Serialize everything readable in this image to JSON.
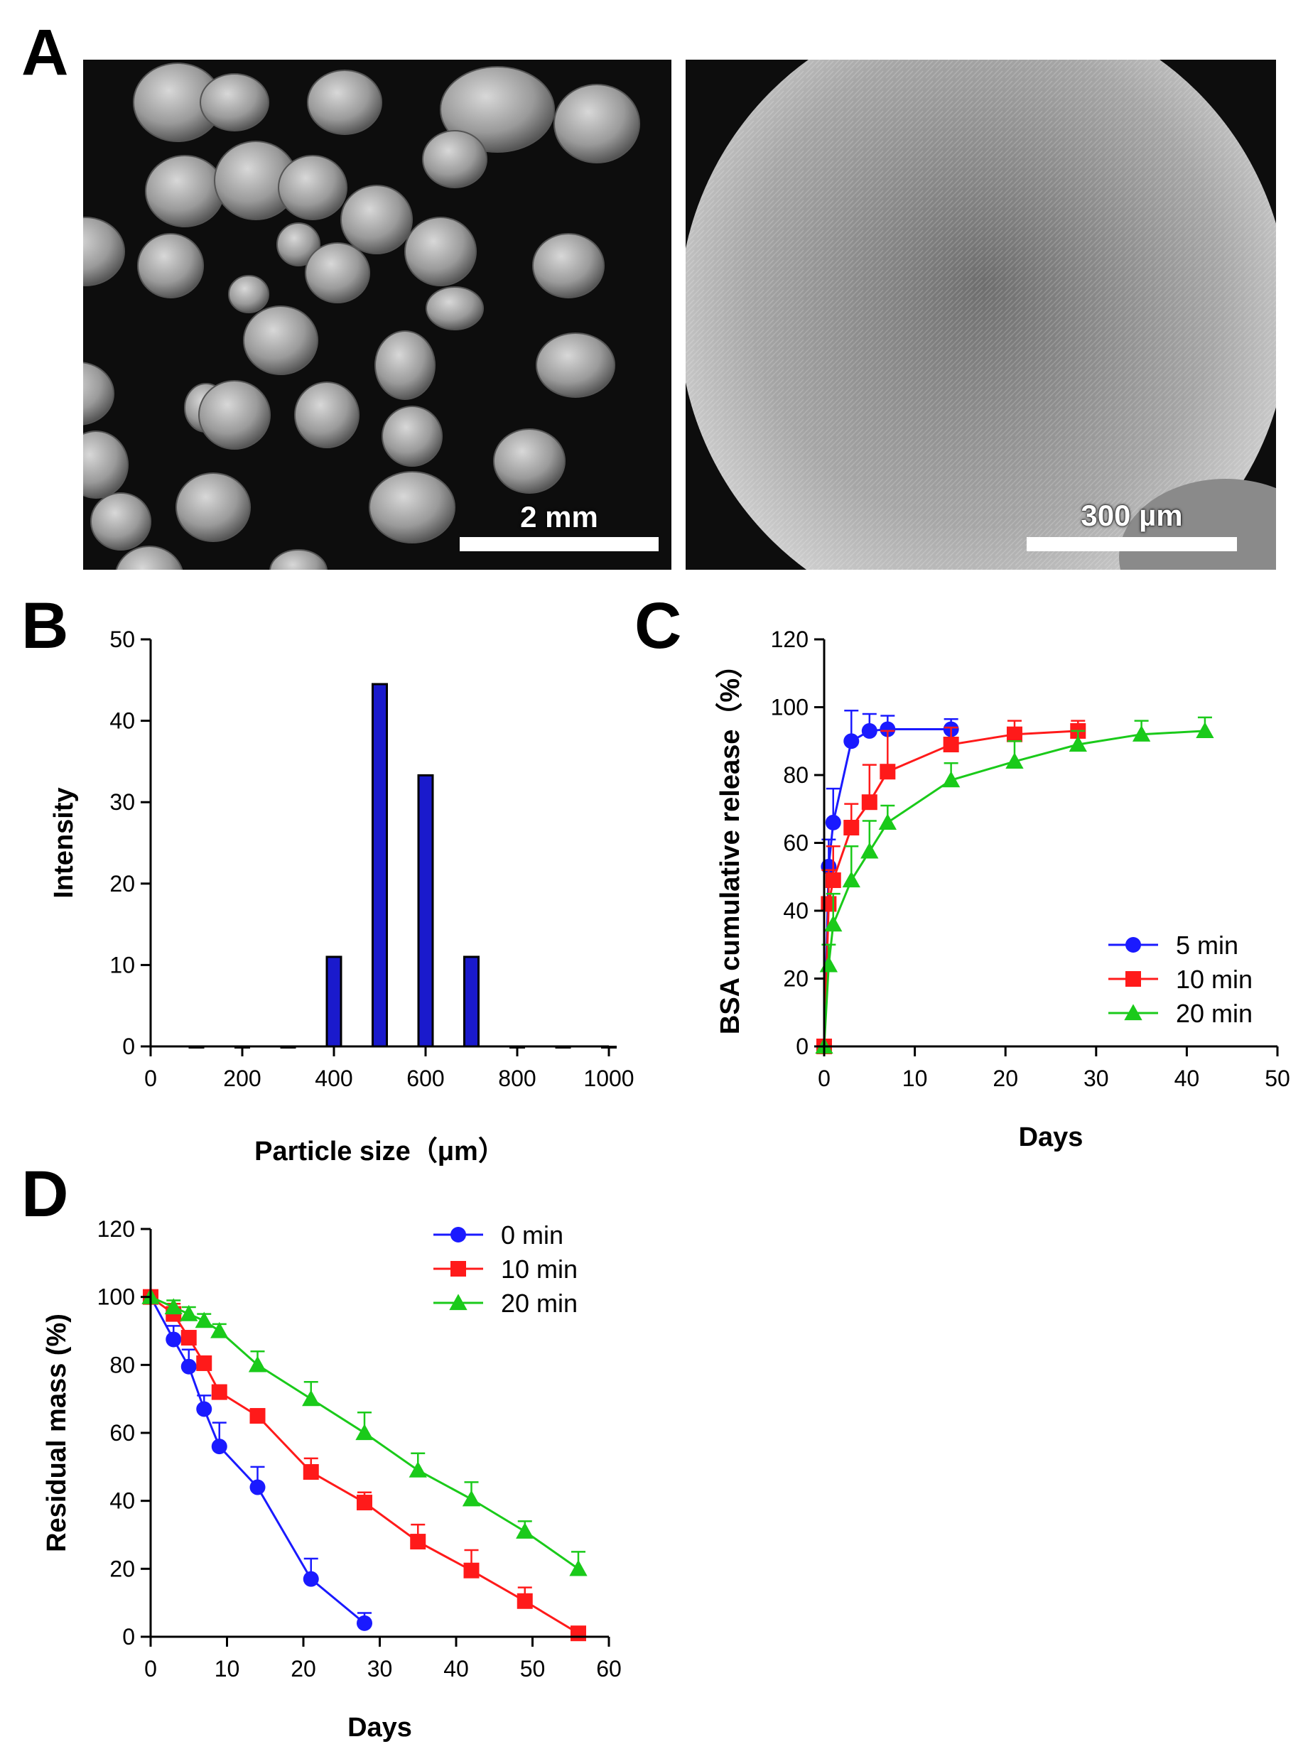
{
  "panels": {
    "A": {
      "letter": "A",
      "left_scale_label": "2 mm",
      "right_scale_label": "300 µm"
    },
    "B": {
      "letter": "B"
    },
    "C": {
      "letter": "C"
    },
    "D": {
      "letter": "D"
    }
  },
  "colors": {
    "blue": "#1a1aff",
    "red": "#ff1a1a",
    "green": "#1aca1a",
    "bar_fill": "#1a1acc",
    "axis": "#000000"
  },
  "chart_data": [
    {
      "id": "B",
      "type": "bar",
      "xlabel": "Particle size（μm）",
      "ylabel": "Intensity",
      "xlim": [
        0,
        1000
      ],
      "ylim": [
        0,
        50
      ],
      "xticks": [
        0,
        200,
        400,
        600,
        800,
        1000
      ],
      "yticks": [
        0,
        10,
        20,
        30,
        40,
        50
      ],
      "categories": [
        100,
        200,
        300,
        400,
        500,
        600,
        700,
        800,
        900,
        1000
      ],
      "values": [
        0,
        0,
        0,
        11,
        44.5,
        33.3,
        11,
        0,
        0,
        0
      ]
    },
    {
      "id": "C",
      "type": "line",
      "xlabel": "Days",
      "ylabel": "BSA cumulative release（%）",
      "xlim": [
        0,
        50
      ],
      "ylim": [
        0,
        120
      ],
      "xticks": [
        0,
        10,
        20,
        30,
        40,
        50
      ],
      "yticks": [
        0,
        20,
        40,
        60,
        80,
        100,
        120
      ],
      "legend_position": "bottom-right",
      "series": [
        {
          "name": "5 min",
          "color": "#1a1aff",
          "marker": "circle",
          "x": [
            0,
            0.5,
            1,
            3,
            5,
            7,
            14
          ],
          "y": [
            0,
            53,
            66,
            90,
            93,
            93.5,
            93.5
          ],
          "err": [
            0,
            8,
            10,
            9,
            5,
            4,
            3
          ]
        },
        {
          "name": "10 min",
          "color": "#ff1a1a",
          "marker": "square",
          "x": [
            0,
            0.5,
            1,
            3,
            5,
            7,
            14,
            21,
            28
          ],
          "y": [
            0,
            42,
            49,
            64.5,
            72,
            81,
            89,
            92,
            93
          ],
          "err": [
            0,
            10,
            10,
            7,
            11,
            12,
            5,
            4,
            3
          ]
        },
        {
          "name": "20 min",
          "color": "#1aca1a",
          "marker": "triangle",
          "x": [
            0,
            0.5,
            1,
            3,
            5,
            7,
            14,
            21,
            28,
            35,
            42
          ],
          "y": [
            0,
            24,
            36,
            49,
            57.5,
            66,
            78.5,
            84,
            89,
            92,
            93
          ],
          "err": [
            0,
            6,
            9,
            10,
            9,
            5,
            5,
            6,
            4,
            4,
            4
          ]
        }
      ]
    },
    {
      "id": "D",
      "type": "line",
      "xlabel": "Days",
      "ylabel": "Residual mass (%)",
      "xlim": [
        0,
        60
      ],
      "ylim": [
        0,
        120
      ],
      "xticks": [
        0,
        10,
        20,
        30,
        40,
        50,
        60
      ],
      "yticks": [
        0,
        20,
        40,
        60,
        80,
        100,
        120
      ],
      "legend_position": "top-right",
      "series": [
        {
          "name": "0 min",
          "color": "#1a1aff",
          "marker": "circle",
          "x": [
            0,
            3,
            5,
            7,
            9,
            14,
            21,
            28
          ],
          "y": [
            100,
            87.5,
            79.5,
            67,
            56,
            44,
            17,
            4
          ],
          "err": [
            0,
            4,
            5,
            4,
            7,
            6,
            6,
            3
          ]
        },
        {
          "name": "10 min",
          "color": "#ff1a1a",
          "marker": "square",
          "x": [
            0,
            3,
            5,
            7,
            9,
            14,
            21,
            28,
            35,
            42,
            49,
            56
          ],
          "y": [
            100,
            95,
            88,
            80.5,
            72,
            65,
            48.5,
            39.5,
            28,
            19.5,
            10.5,
            1
          ],
          "err": [
            0,
            3,
            2,
            2,
            2,
            2,
            4,
            3,
            5,
            6,
            4,
            1
          ]
        },
        {
          "name": "20 min",
          "color": "#1aca1a",
          "marker": "triangle",
          "x": [
            0,
            3,
            5,
            7,
            9,
            14,
            21,
            28,
            35,
            42,
            49,
            56
          ],
          "y": [
            100,
            97,
            95,
            93,
            90,
            80,
            70,
            60,
            49,
            40.5,
            31,
            20
          ],
          "err": [
            0,
            2,
            2,
            2,
            2,
            4,
            5,
            6,
            5,
            5,
            3,
            5
          ]
        }
      ]
    }
  ]
}
